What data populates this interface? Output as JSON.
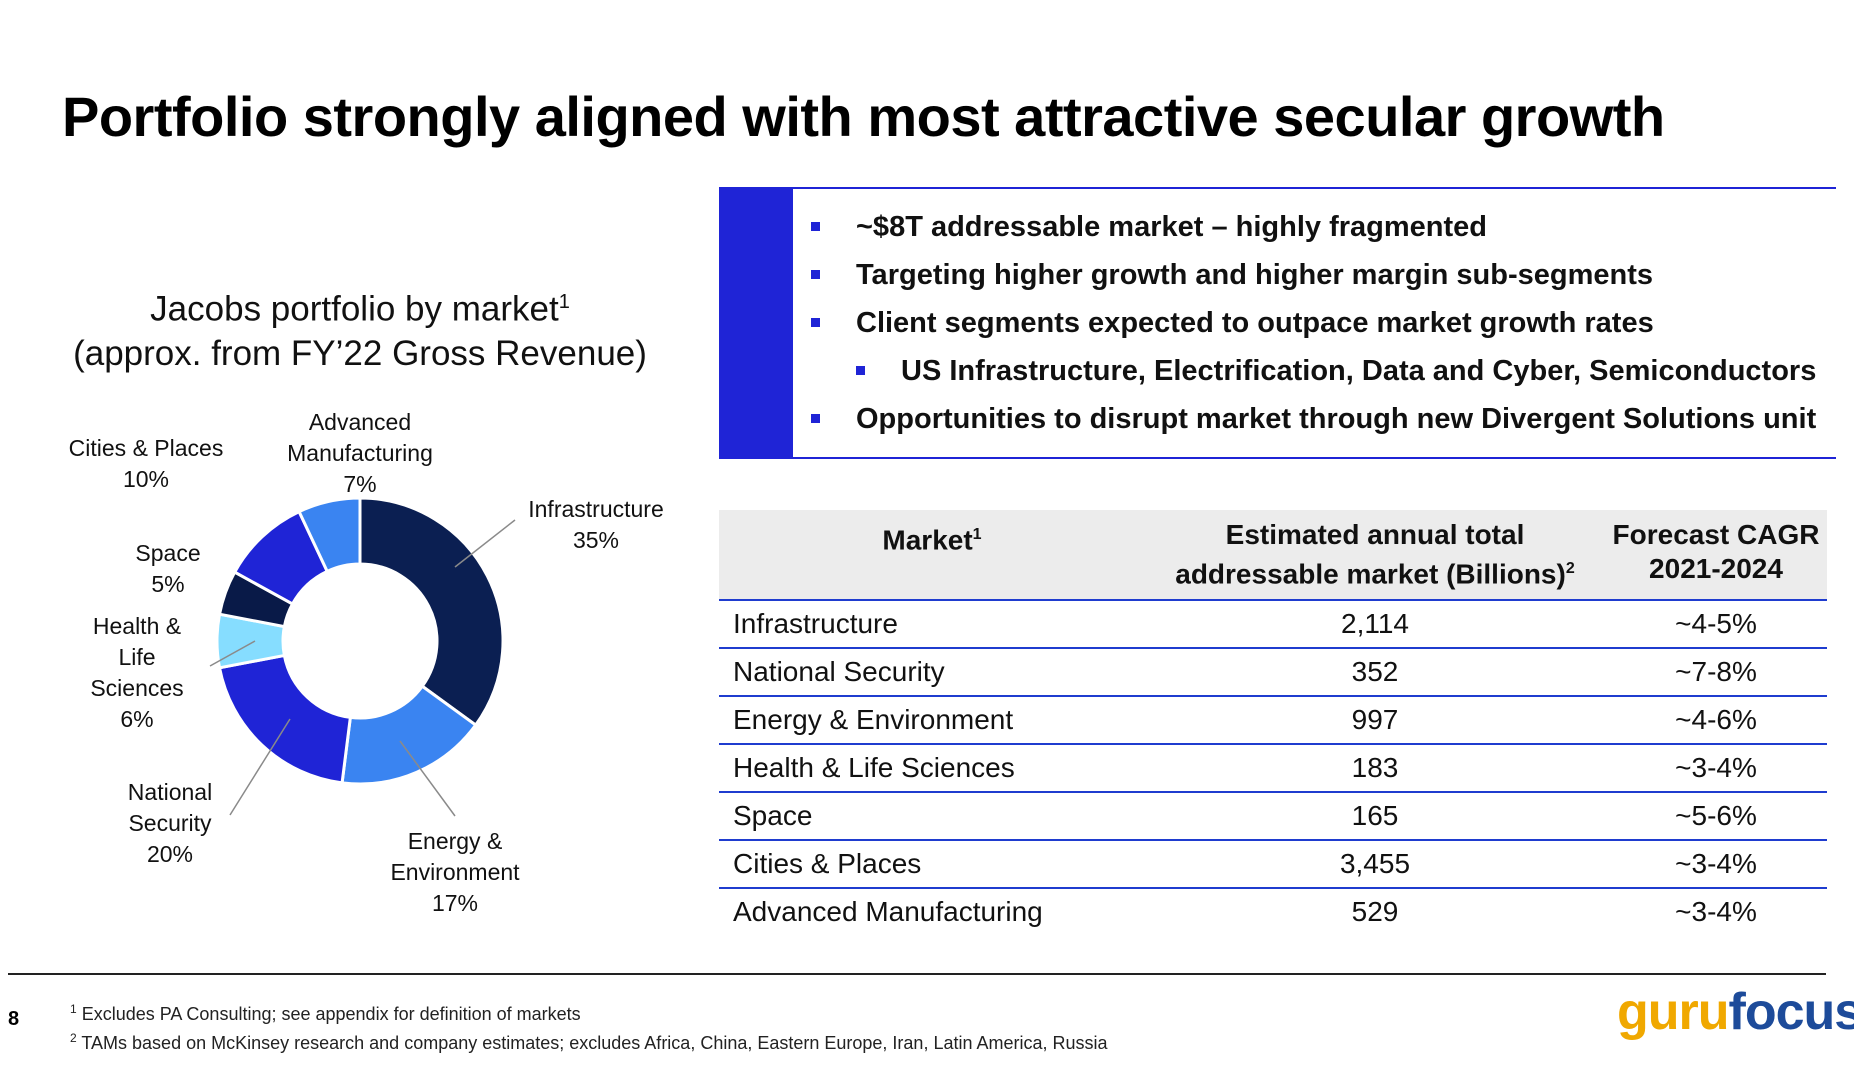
{
  "page": {
    "title": "Portfolio strongly aligned with most attractive secular growth",
    "page_number": "8"
  },
  "chart_title": {
    "line1": "Jacobs portfolio by market",
    "sup": "1",
    "line2": "(approx. from FY’22 Gross Revenue)"
  },
  "chart_data": {
    "type": "pie",
    "title": "Jacobs portfolio by market (approx. from FY’22 Gross Revenue)",
    "unit": "%",
    "categories": [
      "Infrastructure",
      "Energy & Environment",
      "National Security",
      "Health & Life Sciences",
      "Space",
      "Cities & Places",
      "Advanced Manufacturing"
    ],
    "values": [
      35,
      17,
      20,
      6,
      5,
      10,
      7
    ],
    "labels": [
      {
        "lines": [
          "Infrastructure",
          "35%"
        ]
      },
      {
        "lines": [
          "Energy &",
          "Environment",
          "17%"
        ]
      },
      {
        "lines": [
          "National",
          "Security",
          "20%"
        ]
      },
      {
        "lines": [
          "Health &",
          "Life",
          "Sciences",
          "6%"
        ]
      },
      {
        "lines": [
          "Space",
          "5%"
        ]
      },
      {
        "lines": [
          "Cities & Places",
          "10%"
        ]
      },
      {
        "lines": [
          "Advanced",
          "Manufacturing",
          "7%"
        ]
      }
    ],
    "colors": [
      "#0b1f52",
      "#3a84f1",
      "#1f24d6",
      "#86ddff",
      "#091a48",
      "#1f24d6",
      "#3a84f1"
    ],
    "donut": true
  },
  "bullets": [
    {
      "text": "~$8T addressable market – highly fragmented",
      "level": 1
    },
    {
      "text": "Targeting higher growth and higher margin sub-segments",
      "level": 1
    },
    {
      "text": "Client segments expected to outpace market growth rates",
      "level": 1
    },
    {
      "text": "US Infrastructure, Electrification, Data and Cyber, Semiconductors",
      "level": 2
    },
    {
      "text": "Opportunities to disrupt market through new Divergent Solutions unit",
      "level": 1
    }
  ],
  "table": {
    "headers": {
      "market": "Market",
      "market_sup": "1",
      "tam_line1": "Estimated annual total",
      "tam_line2": "addressable market (Billions)",
      "tam_sup": "2",
      "cagr_line1": "Forecast CAGR",
      "cagr_line2": "2021-2024"
    },
    "rows": [
      {
        "market": "Infrastructure",
        "tam": "2,114",
        "cagr": "~4-5%"
      },
      {
        "market": "National Security",
        "tam": "352",
        "cagr": "~7-8%"
      },
      {
        "market": "Energy & Environment",
        "tam": "997",
        "cagr": "~4-6%"
      },
      {
        "market": "Health & Life Sciences",
        "tam": "183",
        "cagr": "~3-4%"
      },
      {
        "market": "Space",
        "tam": "165",
        "cagr": "~5-6%"
      },
      {
        "market": "Cities & Places",
        "tam": "3,455",
        "cagr": "~3-4%"
      },
      {
        "market": "Advanced Manufacturing",
        "tam": "529",
        "cagr": "~3-4%"
      }
    ]
  },
  "footnotes": {
    "n1_sup": "1",
    "n1": "Excludes PA Consulting; see appendix for definition of markets",
    "n2_sup": "2",
    "n2": "TAMs based on McKinsey research and company estimates; excludes Africa, China, Eastern Europe, Iran, Latin America, Russia"
  },
  "logo": {
    "part1": "guru",
    "part2": "focus"
  },
  "colors": {
    "accent_blue": "#1f24d6",
    "rule_blue": "#1f3ccf",
    "header_gray": "#ececec",
    "logo_gold": "#f0a800",
    "logo_blue": "#1d4b9a"
  }
}
